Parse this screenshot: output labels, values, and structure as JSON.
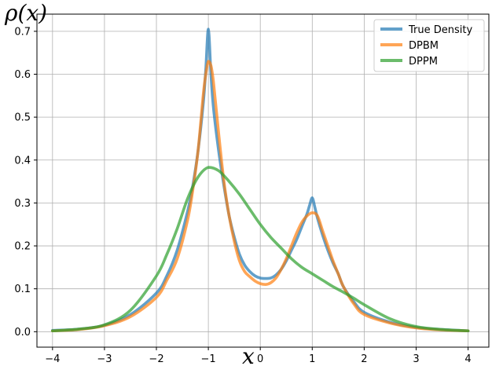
{
  "chart_data": {
    "type": "line",
    "xlabel": "x",
    "ylabel": "ρ(x)",
    "xlim": [
      -4.3,
      4.4
    ],
    "ylim": [
      -0.036,
      0.74
    ],
    "xticks": [
      -4,
      -3,
      -2,
      -1,
      0,
      1,
      2,
      3,
      4
    ],
    "yticks": [
      0.0,
      0.1,
      0.2,
      0.3,
      0.4,
      0.5,
      0.6,
      0.7
    ],
    "xtick_labels": [
      "−4",
      "−3",
      "−2",
      "−1",
      "0",
      "1",
      "2",
      "3",
      "4"
    ],
    "ytick_labels": [
      "0.0",
      "0.1",
      "0.2",
      "0.3",
      "0.4",
      "0.5",
      "0.6",
      "0.7"
    ],
    "grid": true,
    "legend_position": "top-right",
    "series": [
      {
        "name": "True Density",
        "color": "#1f77b4",
        "x": [
          -4,
          -3.5,
          -3,
          -2.5,
          -2,
          -1.8,
          -1.6,
          -1.4,
          -1.3,
          -1.2,
          -1.1,
          -1.05,
          -1.0,
          -0.95,
          -0.9,
          -0.8,
          -0.7,
          -0.6,
          -0.5,
          -0.4,
          -0.3,
          -0.2,
          -0.1,
          0,
          0.1,
          0.2,
          0.3,
          0.4,
          0.5,
          0.6,
          0.7,
          0.8,
          0.9,
          0.95,
          1.0,
          1.05,
          1.1,
          1.2,
          1.3,
          1.4,
          1.5,
          1.6,
          1.8,
          2.0,
          2.5,
          3.0,
          3.5,
          4.0
        ],
        "y": [
          0.003,
          0.006,
          0.015,
          0.04,
          0.09,
          0.13,
          0.19,
          0.28,
          0.34,
          0.42,
          0.53,
          0.61,
          0.705,
          0.6,
          0.52,
          0.42,
          0.34,
          0.27,
          0.22,
          0.18,
          0.155,
          0.14,
          0.13,
          0.125,
          0.124,
          0.125,
          0.132,
          0.145,
          0.165,
          0.19,
          0.215,
          0.245,
          0.275,
          0.295,
          0.312,
          0.29,
          0.265,
          0.225,
          0.19,
          0.16,
          0.135,
          0.105,
          0.07,
          0.045,
          0.022,
          0.01,
          0.005,
          0.002
        ]
      },
      {
        "name": "DPBM",
        "color": "#ff7f0e",
        "x": [
          -4,
          -3.5,
          -3,
          -2.5,
          -2,
          -1.8,
          -1.6,
          -1.4,
          -1.3,
          -1.2,
          -1.1,
          -1.05,
          -1.0,
          -0.95,
          -0.9,
          -0.8,
          -0.7,
          -0.6,
          -0.5,
          -0.4,
          -0.3,
          -0.2,
          -0.1,
          0,
          0.1,
          0.2,
          0.3,
          0.4,
          0.5,
          0.6,
          0.7,
          0.8,
          0.9,
          1.0,
          1.1,
          1.2,
          1.3,
          1.4,
          1.5,
          1.6,
          1.8,
          2.0,
          2.5,
          3.0,
          3.5,
          4.0
        ],
        "y": [
          0.002,
          0.005,
          0.014,
          0.035,
          0.08,
          0.12,
          0.17,
          0.26,
          0.33,
          0.42,
          0.55,
          0.6,
          0.63,
          0.62,
          0.58,
          0.46,
          0.35,
          0.27,
          0.21,
          0.165,
          0.14,
          0.128,
          0.118,
          0.112,
          0.11,
          0.114,
          0.125,
          0.145,
          0.17,
          0.2,
          0.23,
          0.255,
          0.27,
          0.277,
          0.27,
          0.235,
          0.2,
          0.165,
          0.135,
          0.105,
          0.065,
          0.04,
          0.02,
          0.009,
          0.004,
          0.002
        ]
      },
      {
        "name": "DPPM",
        "color": "#2ca02c",
        "x": [
          -4,
          -3.5,
          -3,
          -2.5,
          -2,
          -1.8,
          -1.6,
          -1.4,
          -1.2,
          -1.0,
          -0.8,
          -0.6,
          -0.4,
          -0.2,
          0,
          0.2,
          0.4,
          0.6,
          0.8,
          1.0,
          1.2,
          1.4,
          1.6,
          1.8,
          2.0,
          2.5,
          3.0,
          3.5,
          4.0
        ],
        "y": [
          0.002,
          0.006,
          0.016,
          0.05,
          0.13,
          0.18,
          0.24,
          0.31,
          0.36,
          0.383,
          0.375,
          0.35,
          0.32,
          0.285,
          0.25,
          0.22,
          0.195,
          0.17,
          0.15,
          0.135,
          0.12,
          0.105,
          0.092,
          0.078,
          0.063,
          0.03,
          0.012,
          0.005,
          0.002
        ]
      }
    ]
  }
}
